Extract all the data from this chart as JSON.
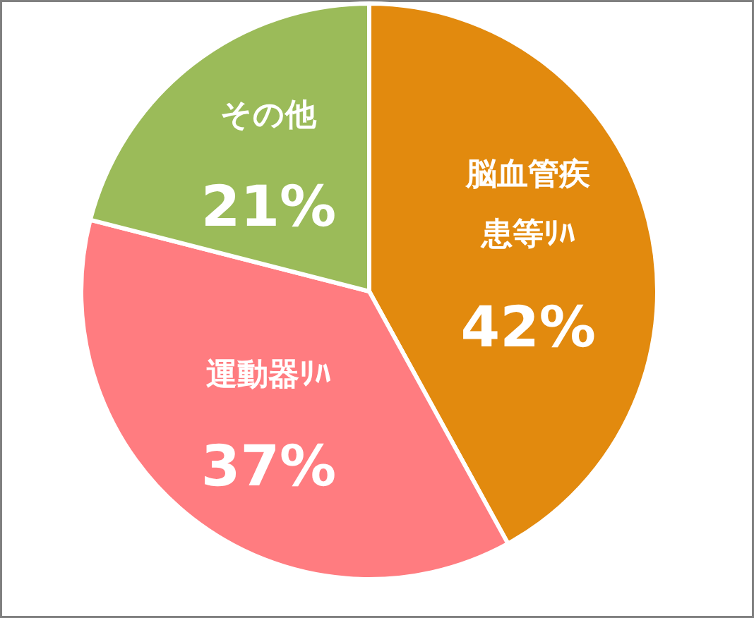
{
  "chart_data": {
    "type": "pie",
    "categories": [
      "脳血管疾患等ﾘﾊ",
      "運動器ﾘﾊ",
      "その他"
    ],
    "values": [
      42,
      37,
      21
    ],
    "value_labels": [
      "42%",
      "37%",
      "21%"
    ],
    "colors": [
      "#e28a0e",
      "#ff7c80",
      "#9bbb59"
    ]
  }
}
